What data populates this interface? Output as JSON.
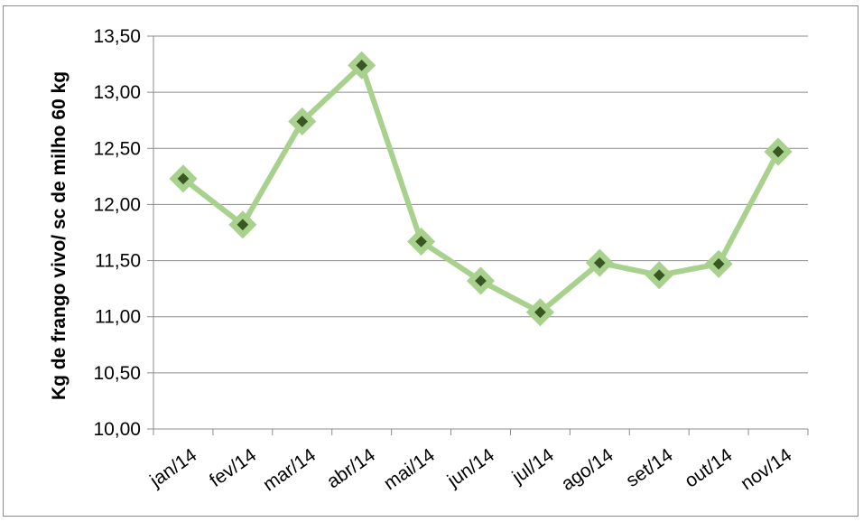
{
  "chart_data": {
    "type": "line",
    "title": "",
    "xlabel": "",
    "ylabel": "Kg de frango vivo/ sc de milho 60 kg",
    "categories": [
      "jan/14",
      "fev/14",
      "mar/14",
      "abr/14",
      "mai/14",
      "jun/14",
      "jul/14",
      "ago/14",
      "set/14",
      "out/14",
      "nov/14"
    ],
    "series": [
      {
        "values": [
          12.23,
          11.82,
          12.74,
          13.24,
          11.67,
          11.32,
          11.04,
          11.48,
          11.37,
          11.47,
          12.47
        ]
      }
    ],
    "ylim": [
      10.0,
      13.5
    ],
    "yticks": [
      "10,00",
      "10,50",
      "11,00",
      "11,50",
      "12,00",
      "12,50",
      "13,00",
      "13,50"
    ],
    "ytick_values": [
      10.0,
      10.5,
      11.0,
      11.5,
      12.0,
      12.5,
      13.0,
      13.5
    ],
    "grid": true,
    "legend": "none",
    "colors": {
      "line": "#a9d18e",
      "marker_fill": "#385723",
      "grid": "#8c8c8c",
      "axis": "#8c8c8c"
    }
  }
}
